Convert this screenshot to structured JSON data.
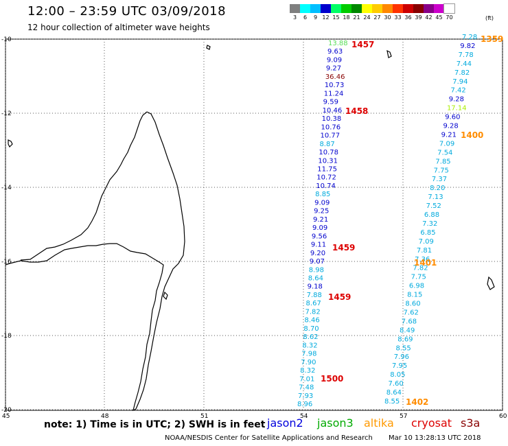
{
  "title": "12:00 – 23:59 UTC 03/09/2018",
  "subtitle": "12 hour collection of altimeter wave heights",
  "colorbar": {
    "unit": "(ft)",
    "entries": [
      {
        "label": "3",
        "color": "#7f7f7f"
      },
      {
        "label": "6",
        "color": "#00ffff"
      },
      {
        "label": "9",
        "color": "#00bfff"
      },
      {
        "label": "12",
        "color": "#0000cd"
      },
      {
        "label": "15",
        "color": "#00ff66"
      },
      {
        "label": "18",
        "color": "#00cc00"
      },
      {
        "label": "21",
        "color": "#008800"
      },
      {
        "label": "24",
        "color": "#ffff00"
      },
      {
        "label": "27",
        "color": "#ffcc00"
      },
      {
        "label": "30",
        "color": "#ff8800"
      },
      {
        "label": "33",
        "color": "#ff3300"
      },
      {
        "label": "36",
        "color": "#cc0000"
      },
      {
        "label": "39",
        "color": "#880000"
      },
      {
        "label": "42",
        "color": "#880088"
      },
      {
        "label": "45",
        "color": "#cc00cc"
      },
      {
        "label": "70",
        "color": "#ffffff"
      }
    ]
  },
  "axes": {
    "lat_labels": [
      "-10",
      "-12",
      "-14",
      "-16",
      "-18",
      "-20"
    ],
    "lon_labels": [
      "45",
      "48",
      "51",
      "54",
      "57",
      "60"
    ]
  },
  "tracks": [
    {
      "name": "left-track",
      "values": [
        {
          "v": "13.88",
          "c": "#55dd55"
        },
        {
          "v": "9.63",
          "c": "#0000cd"
        },
        {
          "v": "9.09",
          "c": "#0000cd"
        },
        {
          "v": "9.27",
          "c": "#0000cd"
        },
        {
          "v": "36.46",
          "c": "#880000"
        },
        {
          "v": "10.73",
          "c": "#0000cd"
        },
        {
          "v": "11.24",
          "c": "#0000cd"
        },
        {
          "v": "9.59",
          "c": "#0000cd"
        },
        {
          "v": "10.46",
          "c": "#0000cd"
        },
        {
          "v": "10.38",
          "c": "#0000cd"
        },
        {
          "v": "10.76",
          "c": "#0000cd"
        },
        {
          "v": "10.77",
          "c": "#0000cd"
        },
        {
          "v": "8.87",
          "c": "#00aadd"
        },
        {
          "v": "10.78",
          "c": "#0000cd"
        },
        {
          "v": "10.31",
          "c": "#0000cd"
        },
        {
          "v": "11.75",
          "c": "#0000cd"
        },
        {
          "v": "10.72",
          "c": "#0000cd"
        },
        {
          "v": "10.74",
          "c": "#0000cd"
        },
        {
          "v": "8.85",
          "c": "#00aadd"
        },
        {
          "v": "9.09",
          "c": "#0000cd"
        },
        {
          "v": "9.25",
          "c": "#0000cd"
        },
        {
          "v": "9.21",
          "c": "#0000cd"
        },
        {
          "v": "9.09",
          "c": "#0000cd"
        },
        {
          "v": "9.56",
          "c": "#0000cd"
        },
        {
          "v": "9.11",
          "c": "#0000cd"
        },
        {
          "v": "9.20",
          "c": "#0000cd"
        },
        {
          "v": "9.07",
          "c": "#0000cd"
        },
        {
          "v": "8.98",
          "c": "#00aadd"
        },
        {
          "v": "8.64",
          "c": "#00aadd"
        },
        {
          "v": "9.18",
          "c": "#0000cd"
        },
        {
          "v": "7.88",
          "c": "#00aadd"
        },
        {
          "v": "8.67",
          "c": "#00aadd"
        },
        {
          "v": "7.82",
          "c": "#00aadd"
        },
        {
          "v": "8.46",
          "c": "#00aadd"
        },
        {
          "v": "8.70",
          "c": "#00aadd"
        },
        {
          "v": "8.62",
          "c": "#00aadd"
        },
        {
          "v": "8.32",
          "c": "#00aadd"
        },
        {
          "v": "7.98",
          "c": "#00aadd"
        },
        {
          "v": "7.90",
          "c": "#00aadd"
        },
        {
          "v": "8.32",
          "c": "#00aadd"
        },
        {
          "v": "7.01",
          "c": "#00aadd"
        },
        {
          "v": "7.48",
          "c": "#00aadd"
        },
        {
          "v": "7.93",
          "c": "#00aadd"
        },
        {
          "v": "8.96",
          "c": "#00aadd"
        }
      ]
    },
    {
      "name": "right-track",
      "values": [
        {
          "v": "7.28",
          "c": "#00aadd"
        },
        {
          "v": "9.82",
          "c": "#0000cd"
        },
        {
          "v": "7.78",
          "c": "#00aadd"
        },
        {
          "v": "7.44",
          "c": "#00aadd"
        },
        {
          "v": "7.82",
          "c": "#00aadd"
        },
        {
          "v": "7.94",
          "c": "#00aadd"
        },
        {
          "v": "7.42",
          "c": "#00aadd"
        },
        {
          "v": "9.28",
          "c": "#0000cd"
        },
        {
          "v": "17.14",
          "c": "#aaee00"
        },
        {
          "v": "9.60",
          "c": "#0000cd"
        },
        {
          "v": "9.28",
          "c": "#0000cd"
        },
        {
          "v": "9.21",
          "c": "#0000cd"
        },
        {
          "v": "7.09",
          "c": "#00aadd"
        },
        {
          "v": "7.54",
          "c": "#00aadd"
        },
        {
          "v": "7.85",
          "c": "#00aadd"
        },
        {
          "v": "7.75",
          "c": "#00aadd"
        },
        {
          "v": "7.37",
          "c": "#00aadd"
        },
        {
          "v": "8.20",
          "c": "#00aadd"
        },
        {
          "v": "7.13",
          "c": "#00aadd"
        },
        {
          "v": "7.52",
          "c": "#00aadd"
        },
        {
          "v": "6.88",
          "c": "#00aadd"
        },
        {
          "v": "7.32",
          "c": "#00aadd"
        },
        {
          "v": "6.85",
          "c": "#00aadd"
        },
        {
          "v": "7.09",
          "c": "#00aadd"
        },
        {
          "v": "7.81",
          "c": "#00aadd"
        },
        {
          "v": "7.36",
          "c": "#00aadd"
        },
        {
          "v": "7.82",
          "c": "#00aadd"
        },
        {
          "v": "7.75",
          "c": "#00aadd"
        },
        {
          "v": "6.98",
          "c": "#00aadd"
        },
        {
          "v": "8.15",
          "c": "#00aadd"
        },
        {
          "v": "8.60",
          "c": "#00aadd"
        },
        {
          "v": "7.62",
          "c": "#00aadd"
        },
        {
          "v": "7.68",
          "c": "#00aadd"
        },
        {
          "v": "8.49",
          "c": "#00aadd"
        },
        {
          "v": "8.69",
          "c": "#00aadd"
        },
        {
          "v": "8.55",
          "c": "#00aadd"
        },
        {
          "v": "7.96",
          "c": "#00aadd"
        },
        {
          "v": "7.95",
          "c": "#00aadd"
        },
        {
          "v": "8.05",
          "c": "#00aadd"
        },
        {
          "v": "7.60",
          "c": "#00aadd"
        },
        {
          "v": "8.64",
          "c": "#00aadd"
        },
        {
          "v": "8.55",
          "c": "#00aadd"
        }
      ]
    }
  ],
  "time_labels": [
    {
      "t": "1457",
      "c": "#dd0000"
    },
    {
      "t": "1458",
      "c": "#dd0000"
    },
    {
      "t": "1459",
      "c": "#dd0000"
    },
    {
      "t": "1459",
      "c": "#dd0000"
    },
    {
      "t": "1500",
      "c": "#dd0000"
    },
    {
      "t": "1359",
      "c": "#ff8c00"
    },
    {
      "t": "1400",
      "c": "#ff8c00"
    },
    {
      "t": "1401",
      "c": "#ff8c00"
    },
    {
      "t": "1402",
      "c": "#ff8c00"
    }
  ],
  "note": "note: 1) Time is in UTC; 2) SWH is in feet",
  "satellites": [
    {
      "name": "jason2",
      "color": "#0000dd"
    },
    {
      "name": "jason3",
      "color": "#00aa00"
    },
    {
      "name": "altika",
      "color": "#ff9900"
    },
    {
      "name": "cryosat",
      "color": "#dd0000"
    },
    {
      "name": "s3a",
      "color": "#880000"
    }
  ],
  "footer_left": "NOAA/NESDIS Center for Satellite Applications and Research",
  "footer_right": "Mar 10 13:28:13 UTC 2018"
}
